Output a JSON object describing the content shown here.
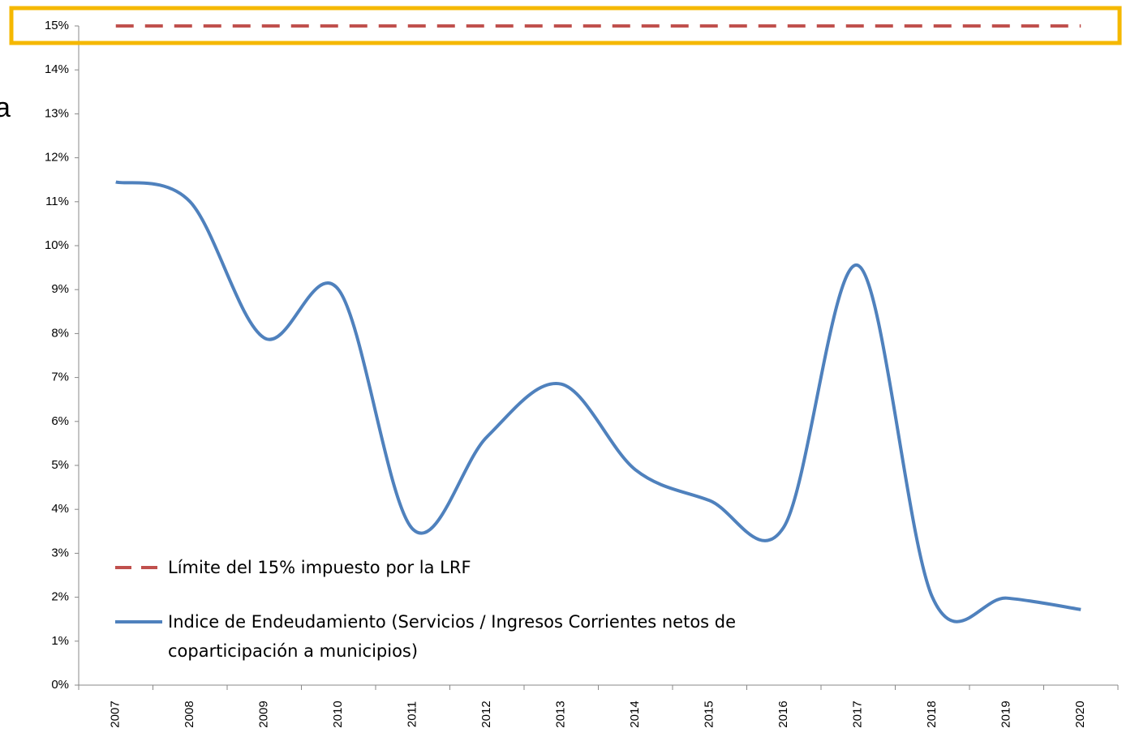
{
  "chart_data": {
    "type": "line",
    "annotation": "a",
    "categories": [
      "2007",
      "2008",
      "2009",
      "2010",
      "2011",
      "2012",
      "2013",
      "2014",
      "2015",
      "2016",
      "2017",
      "2018",
      "2019",
      "2020"
    ],
    "series": [
      {
        "name": "Límite del 15% impuesto por la LRF",
        "color": "#c0504d",
        "dashed": true,
        "values": [
          15,
          15,
          15,
          15,
          15,
          15,
          15,
          15,
          15,
          15,
          15,
          15,
          15,
          15
        ]
      },
      {
        "name": "Indice de Endeudamiento (Servicios / Ingresos Corrientes netos de coparticipación a municipios)",
        "color": "#4f81bd",
        "dashed": false,
        "values": [
          11.45,
          11.0,
          7.9,
          9.0,
          3.55,
          5.65,
          6.85,
          4.9,
          4.2,
          3.6,
          9.55,
          2.0,
          1.98,
          1.72
        ]
      }
    ],
    "ylim": [
      0,
      15
    ],
    "yticks": [
      {
        "value": 0,
        "label": "0%"
      },
      {
        "value": 1,
        "label": "1%"
      },
      {
        "value": 2,
        "label": "2%"
      },
      {
        "value": 3,
        "label": "3%"
      },
      {
        "value": 4,
        "label": "4%"
      },
      {
        "value": 5,
        "label": "5%"
      },
      {
        "value": 6,
        "label": "6%"
      },
      {
        "value": 7,
        "label": "7%"
      },
      {
        "value": 8,
        "label": "8%"
      },
      {
        "value": 9,
        "label": "9%"
      },
      {
        "value": 10,
        "label": "10%"
      },
      {
        "value": 11,
        "label": "11%"
      },
      {
        "value": 12,
        "label": "12%"
      },
      {
        "value": 13,
        "label": "13%"
      },
      {
        "value": 14,
        "label": "14%"
      },
      {
        "value": 15,
        "label": "15%"
      }
    ],
    "highlight_color": "#f5b800"
  }
}
